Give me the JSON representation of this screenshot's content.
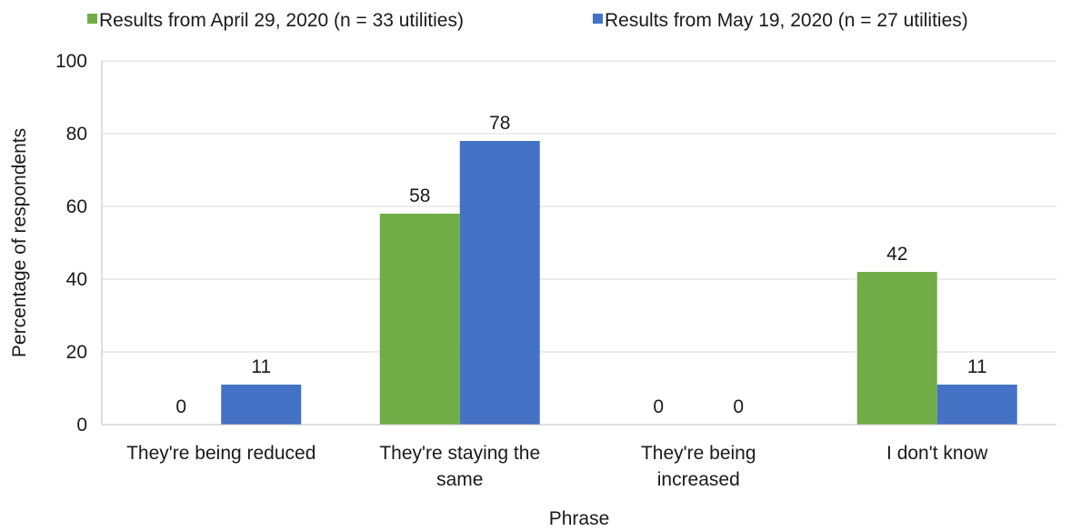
{
  "chart_data": {
    "type": "bar",
    "title": "",
    "xlabel": "Phrase",
    "ylabel": "Percentage of respondents",
    "ylim": [
      0,
      100
    ],
    "yticks": [
      0,
      20,
      40,
      60,
      80,
      100
    ],
    "grid": true,
    "legend_position": "top",
    "categories": [
      [
        "They're being reduced"
      ],
      [
        "They're staying the",
        "same"
      ],
      [
        "They're being",
        "increased"
      ],
      [
        "I don't know"
      ]
    ],
    "series": [
      {
        "name": "Results from April 29, 2020 (n = 33 utilities)",
        "color": "#70ad47",
        "values": [
          0,
          58,
          0,
          42
        ]
      },
      {
        "name": "Results from May 19, 2020 (n = 27 utilities)",
        "color": "#4472c4",
        "values": [
          11,
          78,
          0,
          11
        ]
      }
    ]
  }
}
